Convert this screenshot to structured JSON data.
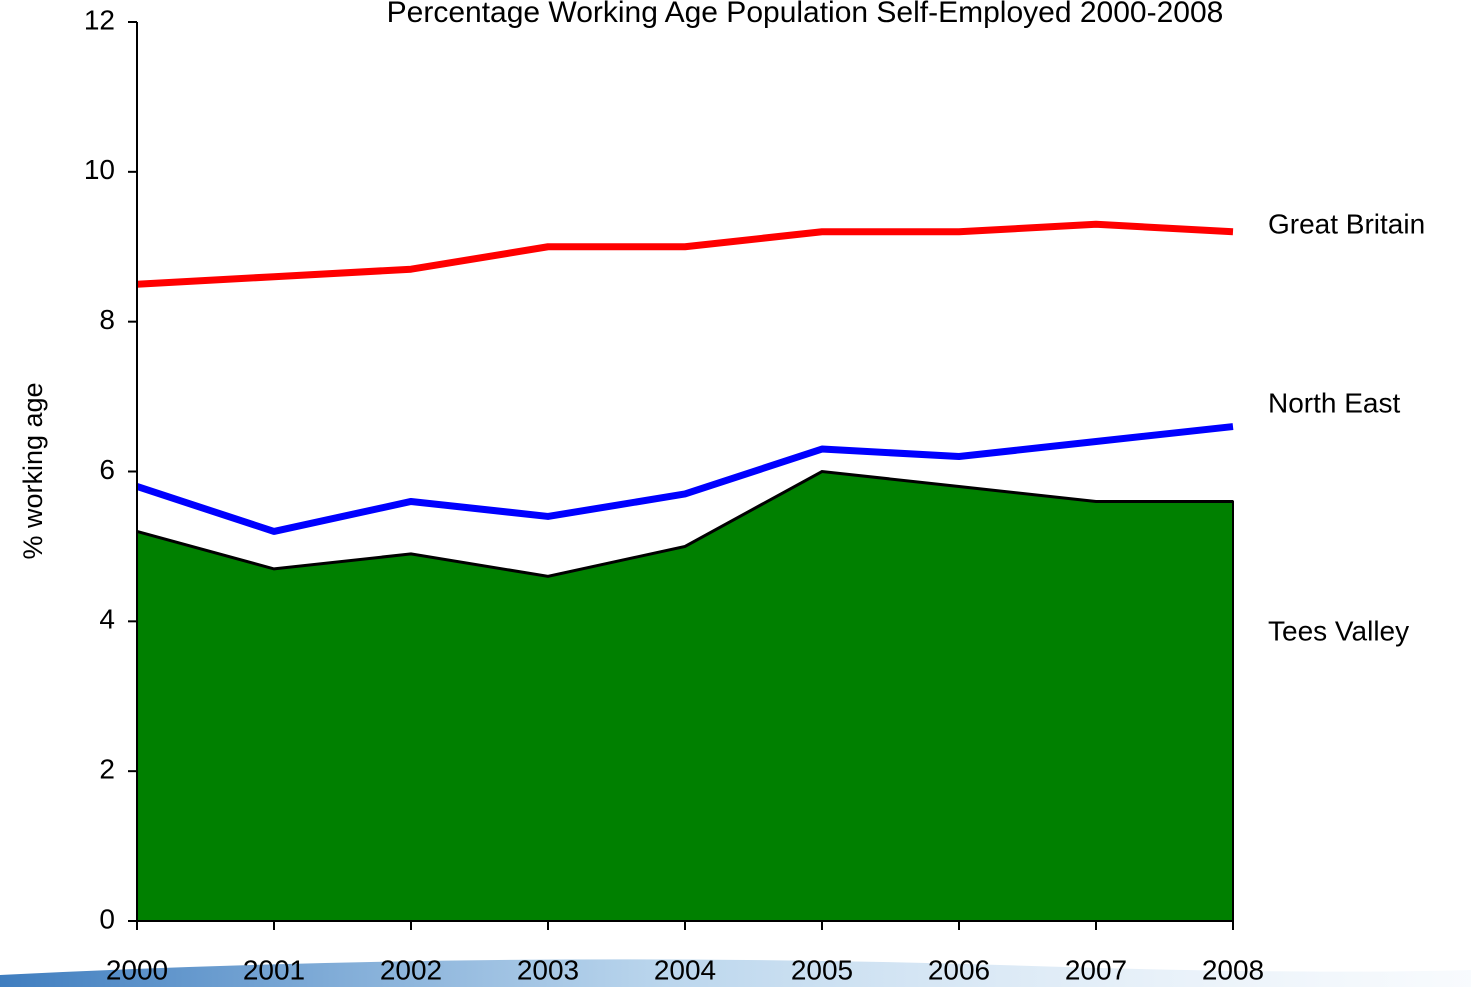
{
  "chart_data": {
    "type": "line",
    "title": "Percentage Working Age Population Self-Employed  2000-2008",
    "y_label": "% working age",
    "x": [
      2000,
      2001,
      2002,
      2003,
      2004,
      2005,
      2006,
      2007,
      2008
    ],
    "xlim": [
      2000,
      2008
    ],
    "xticks": [
      2000,
      2001,
      2002,
      2003,
      2004,
      2005,
      2006,
      2007,
      2008
    ],
    "ylim": [
      0,
      12
    ],
    "yticks": [
      0,
      2,
      4,
      6,
      8,
      10,
      12
    ],
    "grid": false,
    "series": [
      {
        "name": "Great Britain",
        "color": "#ff0000",
        "type": "line",
        "values": [
          8.5,
          8.6,
          8.7,
          9.0,
          9.0,
          9.2,
          9.2,
          9.3,
          9.2
        ]
      },
      {
        "name": "North East",
        "color": "#0000ff",
        "type": "line",
        "values": [
          5.8,
          5.2,
          5.6,
          5.4,
          5.7,
          6.3,
          6.2,
          6.4,
          6.6
        ]
      },
      {
        "name": "Tees Valley",
        "color": "#008000",
        "type": "area",
        "values": [
          5.2,
          4.7,
          4.9,
          4.6,
          5.0,
          6.0,
          5.8,
          5.6,
          5.6
        ]
      }
    ]
  }
}
